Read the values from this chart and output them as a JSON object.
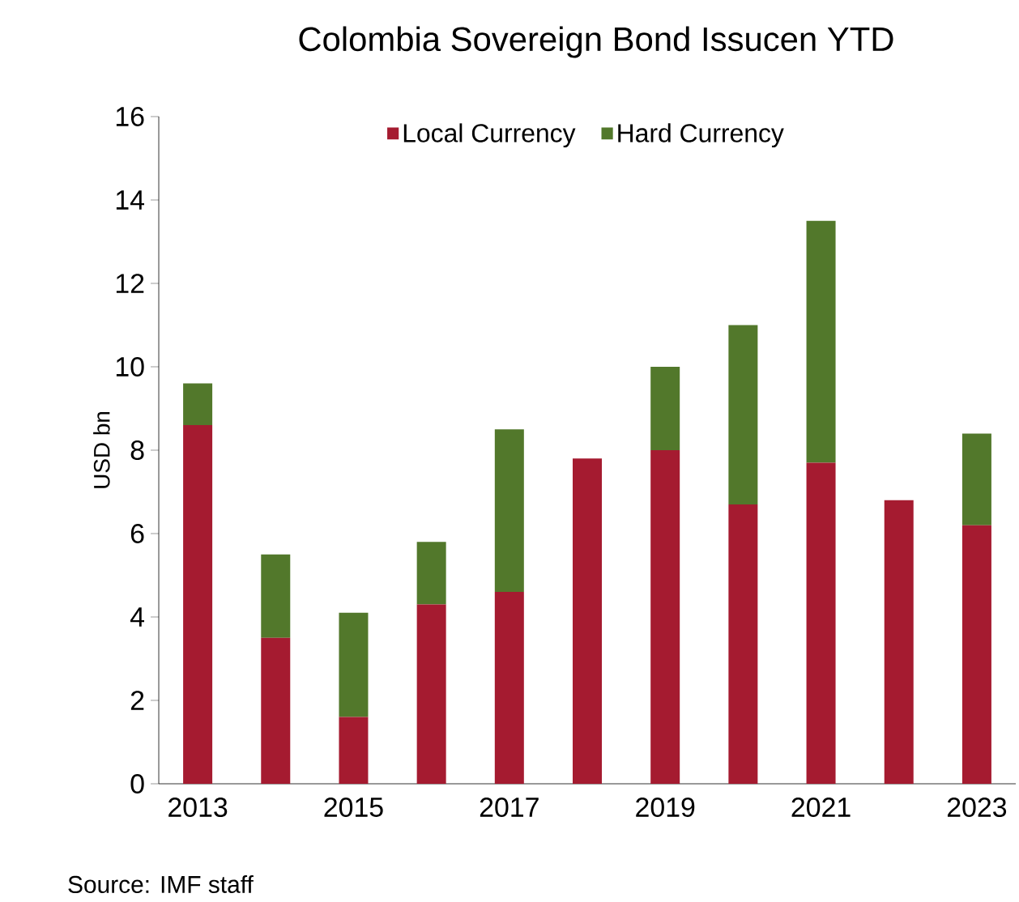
{
  "chart_data": {
    "type": "bar",
    "title": "Colombia Sovereign Bond Issucen YTD",
    "ylabel": "USD bn",
    "categories": [
      "2013",
      null,
      "2015",
      null,
      "2017",
      null,
      "2019",
      null,
      "2021",
      null,
      "2023"
    ],
    "series": [
      {
        "name": "Local Currency",
        "color": "#a51b30",
        "values": [
          8.6,
          3.5,
          1.6,
          4.3,
          4.6,
          7.8,
          8.0,
          6.7,
          7.7,
          6.8,
          6.2
        ]
      },
      {
        "name": "Hard Currency",
        "color": "#52782b",
        "values": [
          1.0,
          2.0,
          2.5,
          1.5,
          3.9,
          0,
          2.0,
          4.3,
          5.8,
          0,
          2.2
        ]
      }
    ],
    "stacked": true,
    "ylim": [
      0,
      16
    ],
    "yticks": [
      0,
      2,
      4,
      6,
      8,
      10,
      12,
      14,
      16
    ],
    "grid": false,
    "legend": "top",
    "annotations": [
      "Source: IMF staff"
    ]
  }
}
